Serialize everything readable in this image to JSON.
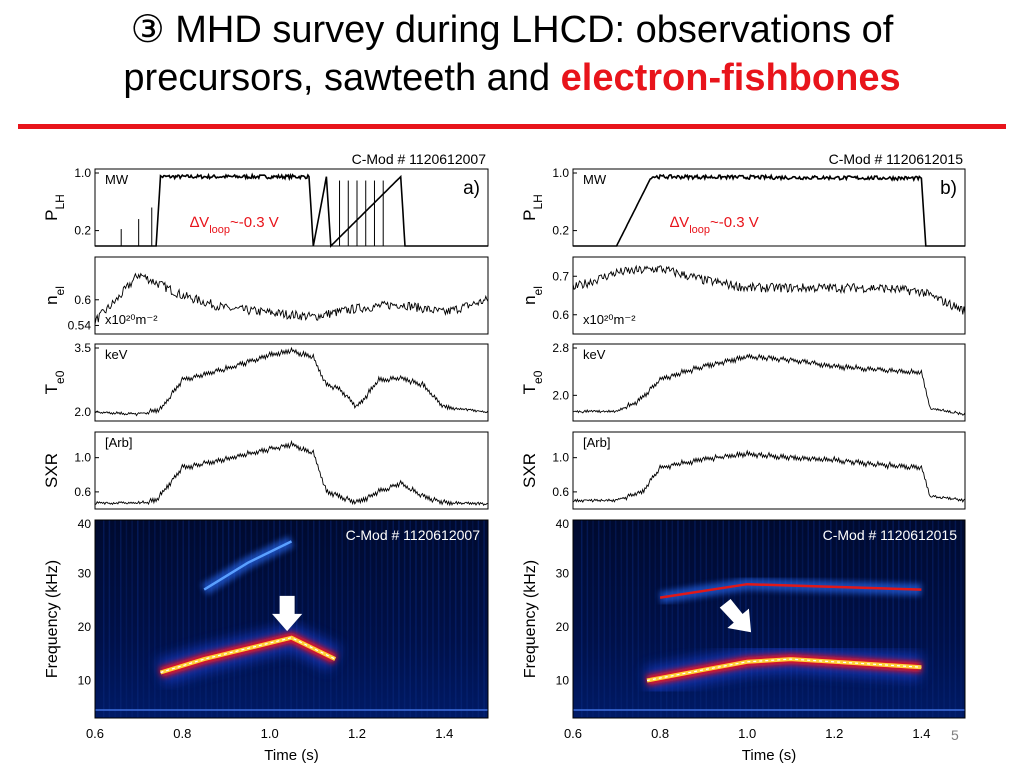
{
  "title": {
    "line1": "③ MHD survey during LHCD: observations of",
    "line2_prefix": "precursors, sawteeth and ",
    "line2_highlight": "electron-fishbones"
  },
  "page_number": "5",
  "colors": {
    "accent": "#e8141b",
    "trace": "#000000",
    "annotation_red": "#e8141b",
    "spectrogram_bg": "#000826"
  },
  "time_axis": {
    "label": "Time (s)",
    "ticks": [
      "0.6",
      "0.8",
      "1.0",
      "1.2",
      "1.4"
    ],
    "range": [
      0.6,
      1.5
    ]
  },
  "chart_data": [
    {
      "type": "line",
      "panel": "a",
      "shot_label": "C-Mod # 1120612007",
      "panel_label": "a)",
      "annotation": {
        "symbol": "∆V",
        "sub": "loop",
        "text": "~-0.3 V"
      },
      "subplots": [
        {
          "id": "plh",
          "ylabel": "P",
          "ylabel_sub": "LH",
          "unit": "MW",
          "yticks": [
            "1.0",
            "0.2"
          ],
          "ylim": [
            0.0,
            1.0
          ],
          "description_points": {
            "x": [
              0.6,
              0.74,
              0.75,
              1.09,
              1.1,
              1.13,
              1.14,
              1.3,
              1.31,
              1.5
            ],
            "y": [
              0.0,
              0.0,
              0.9,
              0.9,
              0.0,
              0.9,
              0.0,
              0.9,
              0.0,
              0.0
            ]
          }
        },
        {
          "id": "nel",
          "ylabel": "n",
          "ylabel_sub": "el",
          "unit": "x10²⁰m⁻²",
          "yticks": [
            "0.6",
            "0.54"
          ],
          "ylim": [
            0.52,
            0.7
          ],
          "series": {
            "x": [
              0.6,
              0.65,
              0.7,
              0.8,
              0.9,
              1.0,
              1.1,
              1.2,
              1.3,
              1.4,
              1.5
            ],
            "y": [
              0.55,
              0.6,
              0.66,
              0.61,
              0.58,
              0.57,
              0.56,
              0.58,
              0.59,
              0.57,
              0.6
            ]
          }
        },
        {
          "id": "te0",
          "ylabel": "T",
          "ylabel_sub": "e0",
          "unit": "keV",
          "yticks": [
            "3.5",
            "2.0"
          ],
          "ylim": [
            1.8,
            3.5
          ],
          "series": {
            "x": [
              0.6,
              0.7,
              0.75,
              0.8,
              0.9,
              1.0,
              1.05,
              1.1,
              1.13,
              1.16,
              1.2,
              1.25,
              1.3,
              1.35,
              1.4,
              1.5
            ],
            "y": [
              2.0,
              1.95,
              2.05,
              2.7,
              2.95,
              3.25,
              3.35,
              3.2,
              2.6,
              2.5,
              2.1,
              2.7,
              2.75,
              2.6,
              2.1,
              2.0
            ]
          }
        },
        {
          "id": "sxr",
          "ylabel": "SXR",
          "ylabel_sub": "",
          "unit": "[Arb]",
          "yticks": [
            "1.0",
            "0.6"
          ],
          "ylim": [
            0.4,
            1.3
          ],
          "series": {
            "x": [
              0.6,
              0.7,
              0.74,
              0.8,
              0.9,
              1.0,
              1.05,
              1.1,
              1.13,
              1.16,
              1.2,
              1.25,
              1.3,
              1.35,
              1.4,
              1.5
            ],
            "y": [
              0.47,
              0.47,
              0.5,
              0.88,
              0.98,
              1.1,
              1.15,
              1.05,
              0.6,
              0.55,
              0.47,
              0.6,
              0.7,
              0.55,
              0.47,
              0.46
            ]
          }
        }
      ],
      "spectrogram": {
        "ylabel": "Frequency (kHz)",
        "yticks": [
          "40",
          "30",
          "20",
          "10"
        ],
        "ylim": [
          3,
          40
        ],
        "shot_label": "C-Mod # 1120612007",
        "modes": [
          {
            "x": [
              0.75,
              0.85,
              0.95,
              1.05,
              1.15
            ],
            "y": [
              11.5,
              14,
              16,
              18,
              14
            ]
          },
          {
            "x": [
              0.85,
              0.95,
              1.05
            ],
            "y": [
              27,
              32,
              36
            ]
          }
        ],
        "arrow_at": {
          "x": 1.04,
          "y": 22
        }
      }
    },
    {
      "type": "line",
      "panel": "b",
      "shot_label": "C-Mod # 1120612015",
      "panel_label": "b)",
      "annotation": {
        "symbol": "∆V",
        "sub": "loop",
        "text": "~-0.3 V"
      },
      "subplots": [
        {
          "id": "plh",
          "ylabel": "P",
          "ylabel_sub": "LH",
          "unit": "MW",
          "yticks": [
            "1.0",
            "0.2"
          ],
          "ylim": [
            0.0,
            1.0
          ],
          "description_points": {
            "x": [
              0.6,
              0.7,
              0.78,
              1.4,
              1.41,
              1.5
            ],
            "y": [
              0.0,
              0.0,
              0.9,
              0.88,
              0.0,
              0.0
            ]
          }
        },
        {
          "id": "nel",
          "ylabel": "n",
          "ylabel_sub": "el",
          "unit": "x10²⁰m⁻²",
          "yticks": [
            "0.7",
            "0.6"
          ],
          "ylim": [
            0.55,
            0.75
          ],
          "series": {
            "x": [
              0.6,
              0.7,
              0.8,
              0.9,
              1.0,
              1.1,
              1.2,
              1.3,
              1.4,
              1.5
            ],
            "y": [
              0.67,
              0.71,
              0.72,
              0.69,
              0.67,
              0.67,
              0.67,
              0.67,
              0.66,
              0.61
            ]
          }
        },
        {
          "id": "te0",
          "ylabel": "T",
          "ylabel_sub": "e0",
          "unit": "keV",
          "yticks": [
            "2.8",
            "2.0"
          ],
          "ylim": [
            1.6,
            2.8
          ],
          "series": {
            "x": [
              0.6,
              0.7,
              0.75,
              0.8,
              0.9,
              1.0,
              1.1,
              1.2,
              1.3,
              1.4,
              1.42,
              1.5
            ],
            "y": [
              1.75,
              1.75,
              1.9,
              2.25,
              2.45,
              2.6,
              2.55,
              2.45,
              2.4,
              2.35,
              1.8,
              1.7
            ]
          }
        },
        {
          "id": "sxr",
          "ylabel": "SXR",
          "ylabel_sub": "",
          "unit": "[Arb]",
          "yticks": [
            "1.0",
            "0.6"
          ],
          "ylim": [
            0.4,
            1.3
          ],
          "series": {
            "x": [
              0.6,
              0.7,
              0.76,
              0.8,
              0.9,
              1.0,
              1.1,
              1.2,
              1.3,
              1.4,
              1.42,
              1.5
            ],
            "y": [
              0.5,
              0.5,
              0.6,
              0.88,
              0.98,
              1.04,
              1.0,
              0.97,
              0.92,
              0.88,
              0.55,
              0.5
            ]
          }
        }
      ],
      "spectrogram": {
        "ylabel": "Frequency (kHz)",
        "yticks": [
          "40",
          "30",
          "20",
          "10"
        ],
        "ylim": [
          3,
          40
        ],
        "shot_label": "C-Mod # 1120612015",
        "modes": [
          {
            "x": [
              0.77,
              0.9,
              1.0,
              1.1,
              1.2,
              1.3,
              1.4
            ],
            "y": [
              10,
              12,
              13.5,
              14,
              13.5,
              13,
              12.5
            ]
          },
          {
            "x": [
              0.8,
              1.0,
              1.2,
              1.4
            ],
            "y": [
              25.5,
              28,
              27.5,
              27
            ]
          }
        ],
        "arrow_at": {
          "x": 0.98,
          "y": 21
        }
      }
    }
  ]
}
